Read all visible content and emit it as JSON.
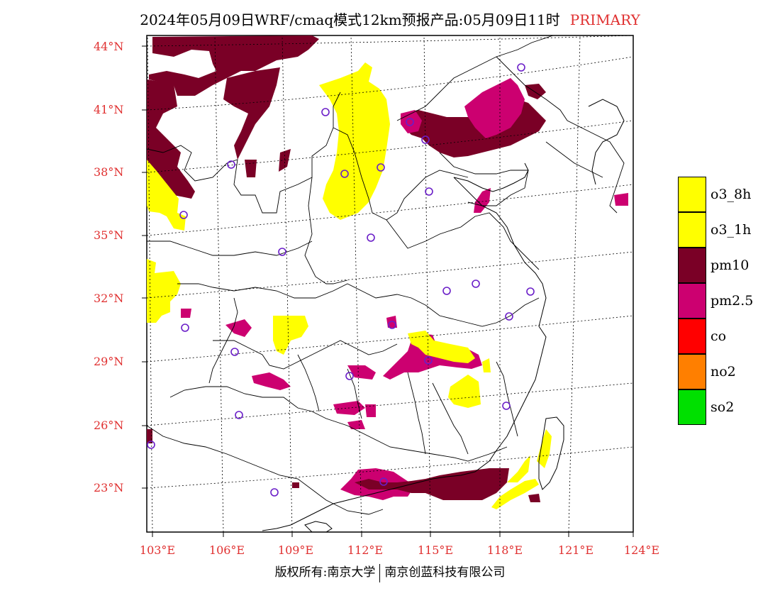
{
  "title": {
    "main": "2024年05月09日WRF/cmaq模式12km预报产品:05月09日11时",
    "tag": "PRIMARY"
  },
  "axes": {
    "lat_labels": [
      "44°N",
      "41°N",
      "38°N",
      "35°N",
      "32°N",
      "29°N",
      "26°N",
      "23°N"
    ],
    "lon_labels": [
      "103°E",
      "106°E",
      "109°E",
      "112°E",
      "115°E",
      "118°E",
      "121°E",
      "124°E"
    ]
  },
  "legend": [
    {
      "label": "o3_8h",
      "color": "#ffff00"
    },
    {
      "label": "o3_1h",
      "color": "#ffff00"
    },
    {
      "label": "pm10",
      "color": "#7a0026"
    },
    {
      "label": "pm2.5",
      "color": "#cc0070"
    },
    {
      "label": "co",
      "color": "#ff0000"
    },
    {
      "label": "no2",
      "color": "#ff7f00"
    },
    {
      "label": "so2",
      "color": "#00e000"
    }
  ],
  "footer": {
    "left": "版权所有:南京大学",
    "right": "南京创蓝科技有限公司"
  }
}
